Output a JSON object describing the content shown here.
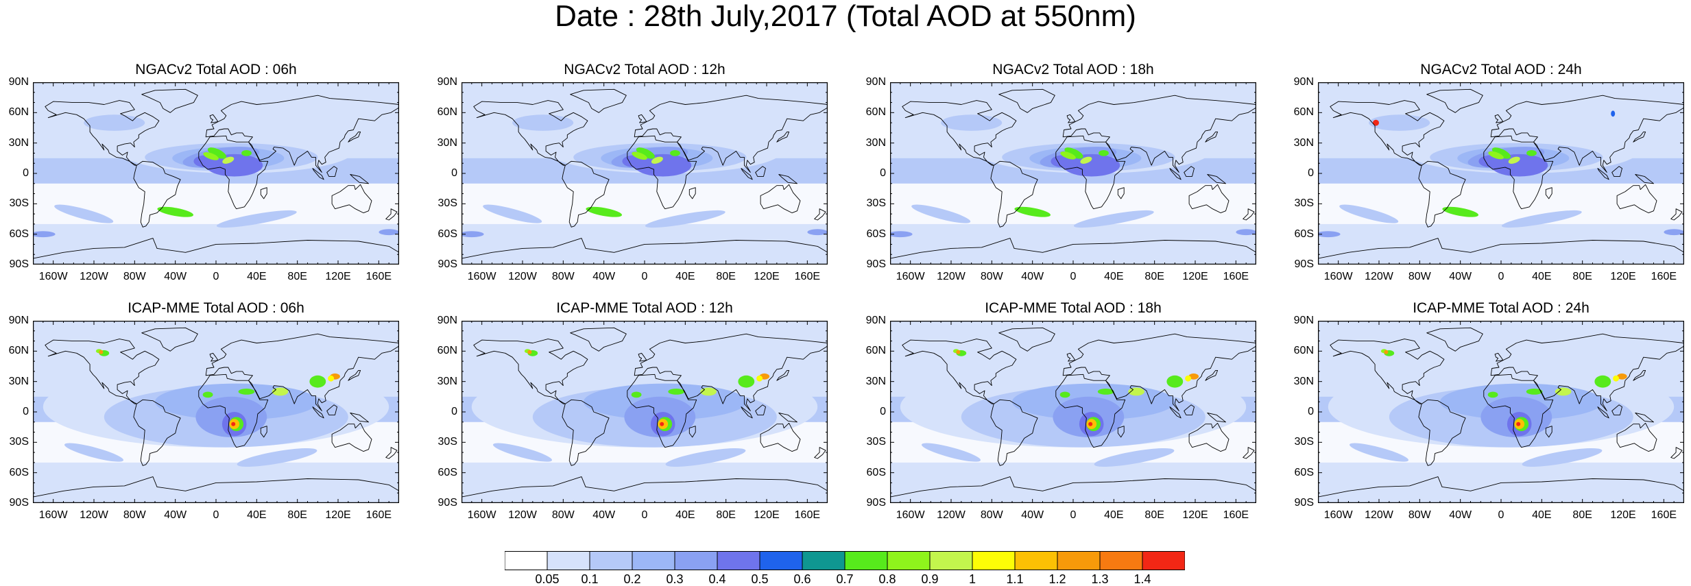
{
  "title": "Date : 28th July,2017 (Total AOD at 550nm)",
  "panels": [
    {
      "title": "NGACv2 Total AOD : 06h",
      "model": "ngac",
      "hour": 6
    },
    {
      "title": "NGACv2 Total AOD : 12h",
      "model": "ngac",
      "hour": 12
    },
    {
      "title": "NGACv2 Total AOD : 18h",
      "model": "ngac",
      "hour": 18
    },
    {
      "title": "NGACv2 Total AOD : 24h",
      "model": "ngac",
      "hour": 24
    },
    {
      "title": "ICAP-MME Total AOD : 06h",
      "model": "icap",
      "hour": 6
    },
    {
      "title": "ICAP-MME Total AOD : 12h",
      "model": "icap",
      "hour": 12
    },
    {
      "title": "ICAP-MME Total AOD : 18h",
      "model": "icap",
      "hour": 18
    },
    {
      "title": "ICAP-MME Total AOD : 24h",
      "model": "icap",
      "hour": 24
    }
  ],
  "lat_ticks": [
    "90N",
    "60N",
    "30N",
    "0",
    "30S",
    "60S",
    "90S"
  ],
  "lon_ticks": [
    "160W",
    "120W",
    "80W",
    "40W",
    "0",
    "40E",
    "80E",
    "120E",
    "160E"
  ],
  "colorbar": {
    "labels": [
      "0.05",
      "0.1",
      "0.2",
      "0.3",
      "0.4",
      "0.5",
      "0.6",
      "0.7",
      "0.8",
      "0.9",
      "1",
      "1.1",
      "1.2",
      "1.3",
      "1.4"
    ],
    "colors": [
      "#ffffff",
      "#d6e2fb",
      "#b5c9f8",
      "#9cb7f6",
      "#8aa1f2",
      "#6f74ec",
      "#1f63ec",
      "#0f9791",
      "#57ea1c",
      "#8ff41c",
      "#c3f54d",
      "#fdfd07",
      "#fcc004",
      "#f79a0a",
      "#f77a11",
      "#f22715"
    ]
  }
}
